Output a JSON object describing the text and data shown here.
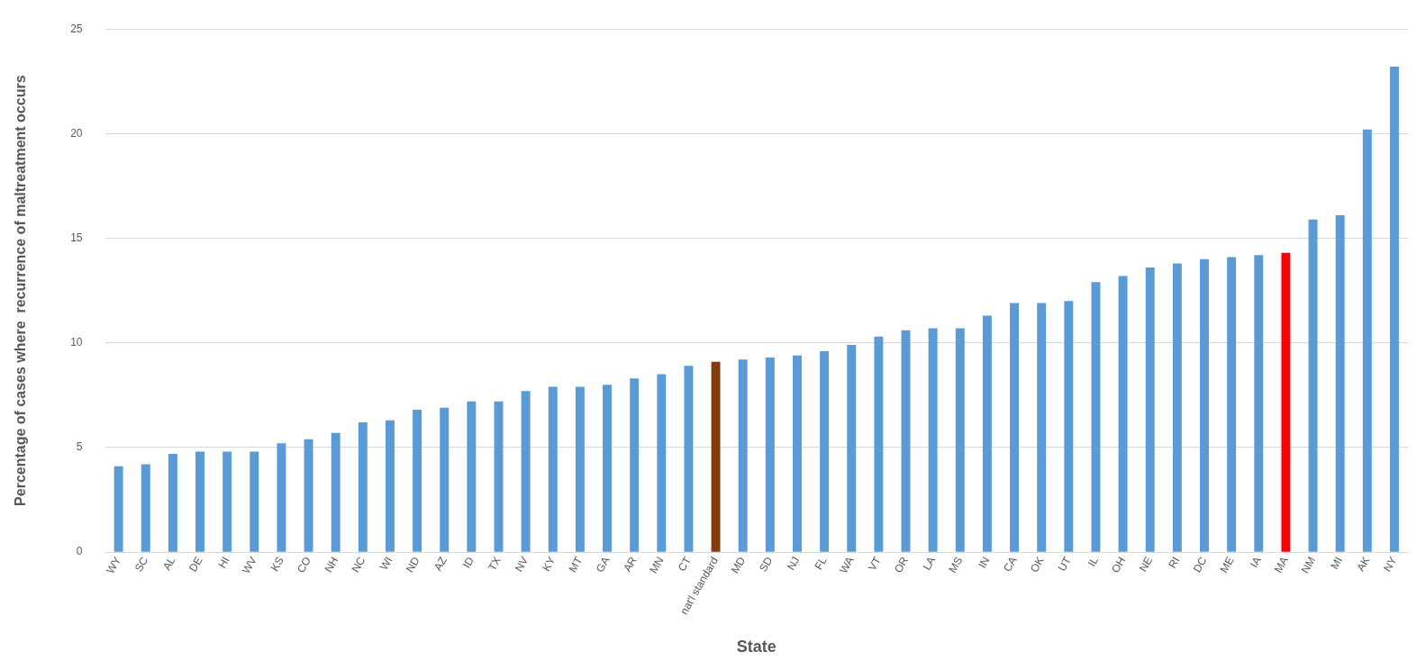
{
  "chart_data": {
    "type": "bar",
    "xlabel": "State",
    "ylabel": "Percentage of cases where  recurrence of maltreatment occurs",
    "categories": [
      "WY",
      "SC",
      "AL",
      "DE",
      "HI",
      "WV",
      "KS",
      "CO",
      "NH",
      "NC",
      "WI",
      "ND",
      "AZ",
      "ID",
      "TX",
      "NV",
      "KY",
      "MT",
      "GA",
      "AR",
      "MN",
      "CT",
      "nat'l standard",
      "MD",
      "SD",
      "NJ",
      "FL",
      "WA",
      "VT",
      "OR",
      "LA",
      "MS",
      "IN",
      "CA",
      "OK",
      "UT",
      "IL",
      "OH",
      "NE",
      "RI",
      "DC",
      "ME",
      "IA",
      "MA",
      "NM",
      "MI",
      "AK",
      "NY"
    ],
    "values": [
      4.1,
      4.2,
      4.7,
      4.8,
      4.8,
      4.8,
      5.2,
      5.4,
      5.7,
      6.2,
      6.3,
      6.8,
      6.9,
      7.2,
      7.2,
      7.7,
      7.9,
      7.9,
      8.0,
      8.3,
      8.5,
      8.9,
      9.1,
      9.2,
      9.3,
      9.4,
      9.6,
      9.9,
      10.3,
      10.6,
      10.7,
      10.7,
      11.3,
      11.9,
      11.9,
      12.0,
      12.9,
      13.2,
      13.6,
      13.8,
      14.0,
      14.1,
      14.2,
      14.3,
      15.9,
      16.1,
      20.2,
      23.2
    ],
    "colors": [
      "#5b9bd5",
      "#5b9bd5",
      "#5b9bd5",
      "#5b9bd5",
      "#5b9bd5",
      "#5b9bd5",
      "#5b9bd5",
      "#5b9bd5",
      "#5b9bd5",
      "#5b9bd5",
      "#5b9bd5",
      "#5b9bd5",
      "#5b9bd5",
      "#5b9bd5",
      "#5b9bd5",
      "#5b9bd5",
      "#5b9bd5",
      "#5b9bd5",
      "#5b9bd5",
      "#5b9bd5",
      "#5b9bd5",
      "#5b9bd5",
      "#843c0c",
      "#5b9bd5",
      "#5b9bd5",
      "#5b9bd5",
      "#5b9bd5",
      "#5b9bd5",
      "#5b9bd5",
      "#5b9bd5",
      "#5b9bd5",
      "#5b9bd5",
      "#5b9bd5",
      "#5b9bd5",
      "#5b9bd5",
      "#5b9bd5",
      "#5b9bd5",
      "#5b9bd5",
      "#5b9bd5",
      "#5b9bd5",
      "#5b9bd5",
      "#5b9bd5",
      "#5b9bd5",
      "#ff0000",
      "#5b9bd5",
      "#5b9bd5",
      "#5b9bd5",
      "#5b9bd5"
    ],
    "ylim": [
      0,
      25
    ],
    "yticks": [
      0,
      5,
      10,
      15,
      20,
      25
    ],
    "grid": "y"
  }
}
